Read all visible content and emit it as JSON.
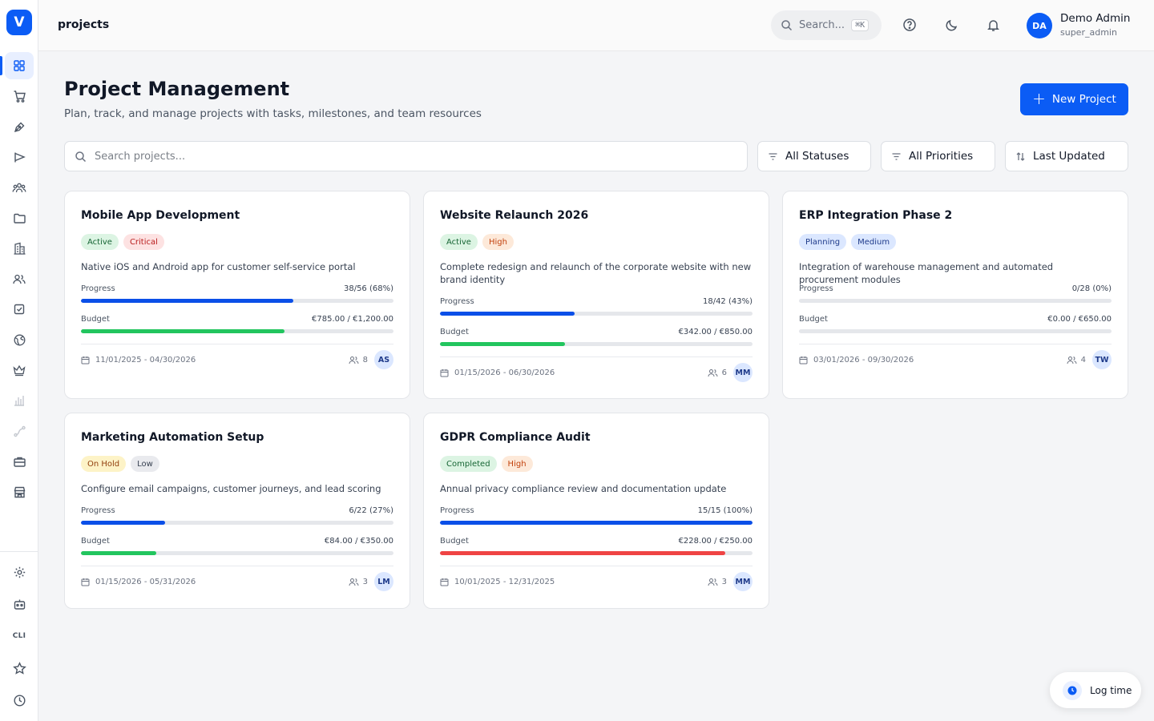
{
  "app": {
    "logo_letter": "V",
    "page_slug": "projects"
  },
  "topbar": {
    "search_label": "Search...",
    "search_shortcut": "⌘K",
    "user": {
      "initials": "DA",
      "name": "Demo Admin",
      "role": "super_admin"
    }
  },
  "sidebar": {
    "top_items": [
      {
        "icon": "dashboard-grid-icon",
        "active": true
      },
      {
        "icon": "shopping-cart-icon"
      },
      {
        "icon": "pen-tool-icon"
      },
      {
        "icon": "campaign-flag-icon"
      },
      {
        "icon": "users-group-icon"
      },
      {
        "icon": "folder-icon"
      },
      {
        "icon": "building-icon"
      },
      {
        "icon": "contacts-icon"
      },
      {
        "icon": "checkbox-icon"
      },
      {
        "icon": "globe-icon"
      },
      {
        "icon": "crown-icon"
      },
      {
        "icon": "bar-chart-icon",
        "faded": true
      },
      {
        "icon": "route-icon",
        "faded": true
      },
      {
        "icon": "briefcase-icon"
      },
      {
        "icon": "store-icon"
      }
    ],
    "bottom_items": [
      {
        "icon": "settings-gear-icon"
      },
      {
        "icon": "robot-icon"
      },
      {
        "icon": "cli-icon",
        "label": "CLI"
      },
      {
        "icon": "star-icon"
      },
      {
        "icon": "history-clock-icon"
      }
    ]
  },
  "header": {
    "title": "Project Management",
    "subtitle": "Plan, track, and manage projects with tasks, milestones, and team resources",
    "new_button_label": "New Project"
  },
  "filters": {
    "search_placeholder": "Search projects...",
    "status": "All Statuses",
    "priority": "All Priorities",
    "sort": "Last Updated"
  },
  "labels": {
    "progress": "Progress",
    "budget": "Budget"
  },
  "colors": {
    "accent": "#0b5cf5",
    "progress_bar": "#0b4fe8",
    "budget_ok": "#22c55e",
    "budget_over": "#ef4444"
  },
  "projects": [
    {
      "title": "Mobile App Development",
      "status": "Active",
      "status_tone": "active",
      "priority": "Critical",
      "priority_tone": "critical",
      "description": "Native iOS and Android app for customer self-service portal",
      "progress_text": "38/56 (68%)",
      "progress": 0.68,
      "budget_text": "€785.00 / €1,200.00",
      "budget": 0.65,
      "budget_tone": "ok",
      "dates": "11/01/2025 - 04/30/2026",
      "team_count": "8",
      "owner_initials": "AS"
    },
    {
      "title": "Website Relaunch 2026",
      "status": "Active",
      "status_tone": "active",
      "priority": "High",
      "priority_tone": "high",
      "description": "Complete redesign and relaunch of the corporate website with new brand identity",
      "progress_text": "18/42 (43%)",
      "progress": 0.43,
      "budget_text": "€342.00 / €850.00",
      "budget": 0.4,
      "budget_tone": "ok",
      "dates": "01/15/2026 - 06/30/2026",
      "team_count": "6",
      "owner_initials": "MM"
    },
    {
      "title": "ERP Integration Phase 2",
      "status": "Planning",
      "status_tone": "planning",
      "priority": "Medium",
      "priority_tone": "medium",
      "description": "Integration of warehouse management and automated procurement modules",
      "progress_text": "0/28 (0%)",
      "progress": 0,
      "budget_text": "€0.00 / €650.00",
      "budget": 0,
      "budget_tone": "ok",
      "dates": "03/01/2026 - 09/30/2026",
      "team_count": "4",
      "owner_initials": "TW"
    },
    {
      "title": "Marketing Automation Setup",
      "status": "On Hold",
      "status_tone": "hold",
      "priority": "Low",
      "priority_tone": "low",
      "description": "Configure email campaigns, customer journeys, and lead scoring",
      "progress_text": "6/22 (27%)",
      "progress": 0.27,
      "budget_text": "€84.00 / €350.00",
      "budget": 0.24,
      "budget_tone": "ok",
      "dates": "01/15/2026 - 05/31/2026",
      "team_count": "3",
      "owner_initials": "LM"
    },
    {
      "title": "GDPR Compliance Audit",
      "status": "Completed",
      "status_tone": "completed",
      "priority": "High",
      "priority_tone": "high",
      "description": "Annual privacy compliance review and documentation update",
      "progress_text": "15/15 (100%)",
      "progress": 1.0,
      "budget_text": "€228.00 / €250.00",
      "budget": 0.912,
      "budget_tone": "over",
      "dates": "10/01/2025 - 12/31/2025",
      "team_count": "3",
      "owner_initials": "MM"
    }
  ],
  "log_time": {
    "label": "Log time"
  }
}
